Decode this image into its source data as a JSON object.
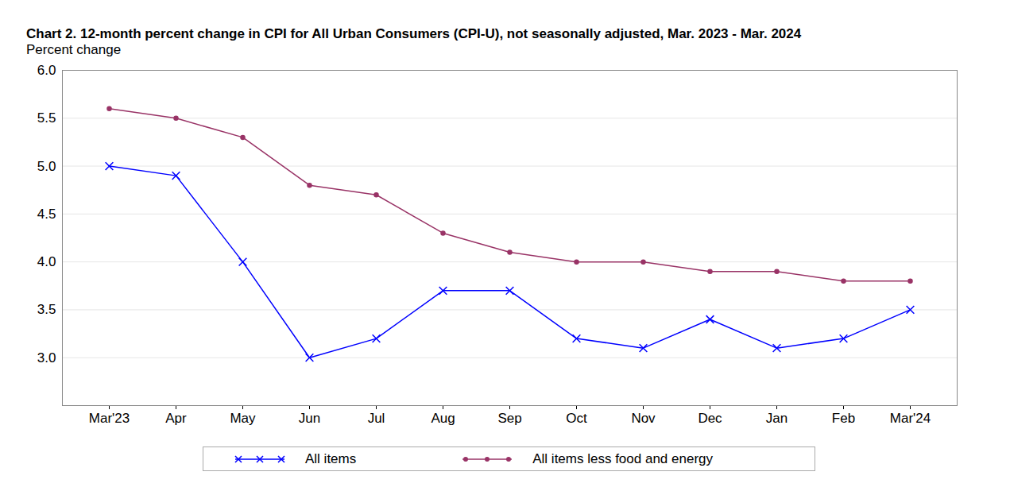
{
  "chart_data": {
    "type": "line",
    "title": "Chart 2. 12-month percent change in CPI for All Urban Consumers (CPI-U), not seasonally adjusted, Mar. 2023 - Mar. 2024",
    "y_label": "Percent change",
    "categories": [
      "Mar'23",
      "Apr",
      "May",
      "Jun",
      "Jul",
      "Aug",
      "Sep",
      "Oct",
      "Nov",
      "Dec",
      "Jan",
      "Feb",
      "Mar'24"
    ],
    "series": [
      {
        "name": "All items",
        "color": "#0000ff",
        "marker": "x",
        "values": [
          5.0,
          4.9,
          4.0,
          3.0,
          3.2,
          3.7,
          3.7,
          3.2,
          3.1,
          3.4,
          3.1,
          3.2,
          3.5
        ]
      },
      {
        "name": "All items less food and energy",
        "color": "#993366",
        "marker": "circle",
        "values": [
          5.6,
          5.5,
          5.3,
          4.8,
          4.7,
          4.3,
          4.1,
          4.0,
          4.0,
          3.9,
          3.9,
          3.8,
          3.8
        ]
      }
    ],
    "ylim": [
      2.5,
      6.0
    ],
    "yticks": [
      {
        "value": 3,
        "label": "3.0"
      },
      3.5,
      {
        "value": 4,
        "label": "4.0"
      },
      4.5,
      {
        "value": 5,
        "label": "5.0"
      },
      5.5,
      {
        "value": 6,
        "label": "6.0"
      }
    ],
    "grid": true,
    "legend": "bottom"
  }
}
